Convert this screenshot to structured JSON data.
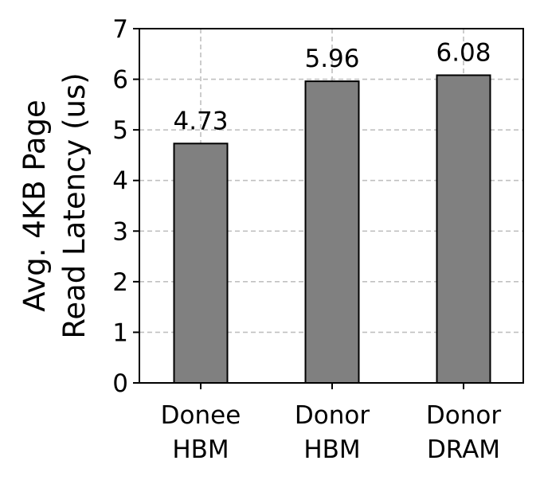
{
  "chart_data": {
    "type": "bar",
    "categories": [
      [
        "Donee",
        "HBM"
      ],
      [
        "Donor",
        "HBM"
      ],
      [
        "Donor",
        "DRAM"
      ]
    ],
    "values": [
      4.73,
      5.96,
      6.08
    ],
    "data_labels": [
      "4.73",
      "5.96",
      "6.08"
    ],
    "title": "",
    "xlabel": "",
    "ylabel": [
      "Avg. 4KB Page",
      "Read Latency (us)"
    ],
    "ylim": [
      0,
      7
    ],
    "yticks": [
      0,
      1,
      2,
      3,
      4,
      5,
      6,
      7
    ],
    "ytick_labels": [
      "0",
      "1",
      "2",
      "3",
      "4",
      "5",
      "6",
      "7"
    ],
    "grid": true,
    "grid_style": "dashed",
    "legend": "none",
    "bar_color": "#808080",
    "bar_edge_color": "#000000",
    "grid_color": "#c0c0c0"
  }
}
